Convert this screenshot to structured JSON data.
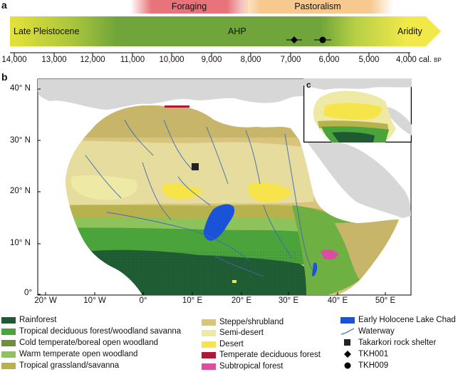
{
  "panel_a": {
    "letter": "a",
    "bands": [
      {
        "label": "Foraging",
        "color": "#e8737a"
      },
      {
        "label": "Pastoralism",
        "color": "#f7c98f"
      }
    ],
    "periods": [
      "Late Pleistocene",
      "AHP",
      "Aridity"
    ],
    "axis_ticks": [
      "14,000",
      "13,000",
      "12,000",
      "11,000",
      "10,000",
      "9,000",
      "8,000",
      "7,000",
      "6,000",
      "5,000",
      "4,000 cal."
    ],
    "axis_unit": "BP",
    "arrow_colors": {
      "start": "#e6e43a",
      "mid": "#6fa53a",
      "end": "#f1e94a"
    }
  },
  "panel_b": {
    "letter": "b",
    "lat_labels": [
      "40° N",
      "30° N",
      "20° N",
      "10° N",
      "0°"
    ],
    "lon_labels": [
      "20° W",
      "10° W",
      "0°",
      "10° E",
      "20° E",
      "30° E",
      "40° E",
      "50° E"
    ]
  },
  "panel_c": {
    "letter": "c"
  },
  "legend": {
    "col1": [
      {
        "label": "Rainforest",
        "color": "#1e5a32",
        "icon": "swatch"
      },
      {
        "label": "Tropical deciduous forest/woodland savanna",
        "color": "#4ba33c",
        "icon": "swatch"
      },
      {
        "label": "Cold temperate/boreal open woodland",
        "color": "#6f8f3a",
        "icon": "swatch"
      },
      {
        "label": "Warm temperate open woodland",
        "color": "#8dc35a",
        "icon": "swatch"
      },
      {
        "label": "Tropical grassland/savanna",
        "color": "#b7b24d",
        "icon": "swatch"
      }
    ],
    "col2": [
      {
        "label": "Steppe/shrubland",
        "color": "#d8c47c",
        "icon": "swatch"
      },
      {
        "label": "Semi-desert",
        "color": "#eeeaa6",
        "icon": "swatch"
      },
      {
        "label": "Desert",
        "color": "#f6e44a",
        "icon": "swatch"
      },
      {
        "label": "Temperate deciduous forest",
        "color": "#b0183a",
        "icon": "swatch"
      },
      {
        "label": "Subtropical forest",
        "color": "#d94ea0",
        "icon": "swatch"
      }
    ],
    "col3": [
      {
        "label": "Early Holocene Lake Chad",
        "color": "#1a53d8",
        "icon": "swatch"
      },
      {
        "label": "Waterway",
        "color": "#3a6ab8",
        "icon": "line"
      },
      {
        "label": "Takarkori rock shelter",
        "color": "#222222",
        "icon": "square"
      },
      {
        "label": "TKH001",
        "color": "#000000",
        "icon": "diamond"
      },
      {
        "label": "TKH009",
        "color": "#000000",
        "icon": "circle"
      }
    ]
  }
}
